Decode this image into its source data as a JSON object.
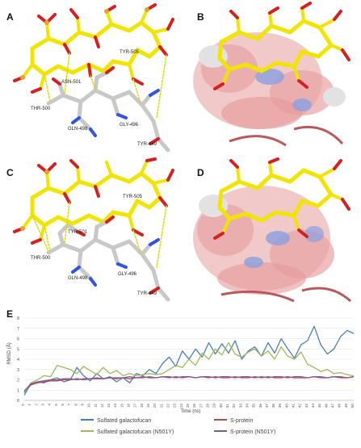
{
  "figure": {
    "panels": [
      {
        "letter": "A",
        "residues": [
          "TYR-505",
          "ASN-501",
          "THR-500",
          "GLN-498",
          "GLY-496",
          "TYR-449"
        ]
      },
      {
        "letter": "B"
      },
      {
        "letter": "C",
        "residues": [
          "TYR-505",
          "TYR-501",
          "THR-500",
          "GLN-498",
          "GLY-496",
          "TYR-449"
        ]
      },
      {
        "letter": "D"
      },
      {
        "letter": "E"
      }
    ],
    "colors": {
      "ligand": "#f0e400",
      "sulfur": "#e8a030",
      "oxygen": "#d62020",
      "protein": "#c8c8c8",
      "nitrogen": "#3355dd",
      "hbond": "#e0d800",
      "surface_neg": "#e88a8a",
      "surface_pos": "#7b8fd8"
    }
  },
  "chart_data": {
    "type": "line",
    "title": "",
    "xlabel": "Time (ns)",
    "ylabel": "RMSD (Å)",
    "xlim": [
      0,
      50
    ],
    "ylim": [
      0,
      8
    ],
    "yticks": [
      0,
      1,
      2,
      3,
      4,
      5,
      6,
      7,
      8
    ],
    "xticks": [
      0,
      1,
      2,
      3,
      4,
      5,
      6,
      7,
      8,
      9,
      10,
      11,
      12,
      13,
      14,
      15,
      16,
      17,
      18,
      19,
      20,
      21,
      22,
      23,
      24,
      25,
      26,
      27,
      28,
      29,
      30,
      31,
      32,
      33,
      34,
      35,
      36,
      37,
      38,
      39,
      40,
      41,
      42,
      43,
      44,
      45,
      46,
      47,
      48,
      49,
      50
    ],
    "grid": true,
    "legend_position": "bottom",
    "x": [
      0,
      1,
      2,
      3,
      4,
      5,
      6,
      7,
      8,
      9,
      10,
      11,
      12,
      13,
      14,
      15,
      16,
      17,
      18,
      19,
      20,
      21,
      22,
      23,
      24,
      25,
      26,
      27,
      28,
      29,
      30,
      31,
      32,
      33,
      34,
      35,
      36,
      37,
      38,
      39,
      40,
      41,
      42,
      43,
      44,
      45,
      46,
      47,
      48,
      49,
      50
    ],
    "series": [
      {
        "name": "Sulfated galactofucan",
        "color": "#4a7ebb",
        "values": [
          0.5,
          1.6,
          1.8,
          1.7,
          2.0,
          2.2,
          1.8,
          2.0,
          3.2,
          2.4,
          1.9,
          2.6,
          2.1,
          2.3,
          1.8,
          2.2,
          1.7,
          2.6,
          2.4,
          3.0,
          2.6,
          3.6,
          4.2,
          3.3,
          4.8,
          4.0,
          5.0,
          4.2,
          5.6,
          4.5,
          5.5,
          4.6,
          5.8,
          4.0,
          4.8,
          5.2,
          4.3,
          5.6,
          4.6,
          6.0,
          5.0,
          4.1,
          5.4,
          5.8,
          7.2,
          5.4,
          4.5,
          5.0,
          6.2,
          6.8,
          6.5
        ]
      },
      {
        "name": "S-protein",
        "color": "#b54a4a",
        "values": [
          0.8,
          1.5,
          1.7,
          1.8,
          1.9,
          1.9,
          2.0,
          2.0,
          2.1,
          2.0,
          2.1,
          2.1,
          2.1,
          2.2,
          2.1,
          2.2,
          2.1,
          2.2,
          2.3,
          2.2,
          2.2,
          2.3,
          2.2,
          2.3,
          2.2,
          2.3,
          2.2,
          2.3,
          2.2,
          2.3,
          2.2,
          2.2,
          2.3,
          2.2,
          2.2,
          2.3,
          2.2,
          2.3,
          2.2,
          2.2,
          2.3,
          2.2,
          2.2,
          2.2,
          2.3,
          2.2,
          2.2,
          2.3,
          2.2,
          2.2,
          2.3
        ]
      },
      {
        "name": "Sulfated galactofucan (N501Y)",
        "color": "#9bbb59",
        "values": [
          0.7,
          1.7,
          2.0,
          2.4,
          2.3,
          3.4,
          3.2,
          3.0,
          2.6,
          3.3,
          2.9,
          2.5,
          3.2,
          2.6,
          2.9,
          2.4,
          2.6,
          2.4,
          2.5,
          2.6,
          2.5,
          2.6,
          3.0,
          3.4,
          3.2,
          4.0,
          3.4,
          4.6,
          4.0,
          5.0,
          4.4,
          5.6,
          4.5,
          4.2,
          4.7,
          5.0,
          4.3,
          4.8,
          4.0,
          5.2,
          4.3,
          4.0,
          4.7,
          3.5,
          3.2,
          2.8,
          3.0,
          2.6,
          2.7,
          2.5,
          2.4
        ]
      },
      {
        "name": "S-protein (N501Y)",
        "color": "#7a5c9e",
        "values": [
          0.9,
          1.6,
          1.8,
          1.9,
          2.0,
          2.0,
          2.1,
          2.1,
          2.0,
          2.1,
          2.1,
          2.2,
          2.1,
          2.2,
          2.2,
          2.2,
          2.3,
          2.2,
          2.2,
          2.3,
          2.2,
          2.3,
          2.3,
          2.2,
          2.3,
          2.3,
          2.2,
          2.3,
          2.3,
          2.2,
          2.3,
          2.3,
          2.2,
          2.3,
          2.3,
          2.2,
          2.3,
          2.2,
          2.3,
          2.3,
          2.2,
          2.3,
          2.3,
          2.2,
          2.3,
          2.3,
          2.2,
          2.3,
          2.3,
          2.2,
          2.3
        ]
      }
    ]
  }
}
